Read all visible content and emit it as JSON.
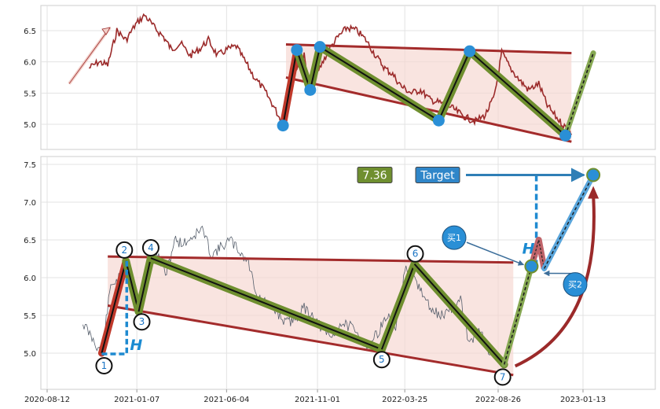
{
  "chart_data": [
    {
      "type": "line",
      "title": "",
      "ylim": [
        4.6,
        6.95
      ],
      "yticks": [
        5.0,
        5.5,
        6.0,
        6.5
      ],
      "xgrid": [
        "2020-08-12",
        "2021-01-07",
        "2021-06-04",
        "2021-11-01",
        "2022-03-25",
        "2022-08-26",
        "2023-01-13"
      ],
      "line_color": "#9b2a2a",
      "series": [
        {
          "x": [
            "2020-10-20",
            "2020-11-05",
            "2020-11-20",
            "2020-12-05",
            "2020-12-20",
            "2021-01-05",
            "2021-01-20",
            "2021-02-05",
            "2021-02-20",
            "2021-03-05",
            "2021-03-20",
            "2021-04-05",
            "2021-04-20",
            "2021-05-05",
            "2021-05-20",
            "2021-06-05",
            "2021-06-20",
            "2021-07-05",
            "2021-07-20",
            "2021-08-05",
            "2021-08-20",
            "2021-09-05",
            "2021-09-15",
            "2021-09-28",
            "2021-10-10",
            "2021-10-20",
            "2021-11-05",
            "2021-11-20",
            "2021-12-05",
            "2021-12-20",
            "2022-01-05",
            "2022-01-20",
            "2022-02-05",
            "2022-02-20",
            "2022-03-05",
            "2022-03-20",
            "2022-04-05",
            "2022-04-20",
            "2022-05-05",
            "2022-05-20",
            "2022-06-05",
            "2022-06-20",
            "2022-07-05",
            "2022-07-20",
            "2022-08-05",
            "2022-08-20",
            "2022-09-01",
            "2022-09-15",
            "2022-10-01",
            "2022-10-15",
            "2022-11-01",
            "2022-11-15",
            "2022-12-01",
            "2022-12-15",
            "2022-12-25"
          ],
          "values": [
            5.9,
            6.0,
            5.95,
            6.5,
            6.35,
            6.6,
            6.75,
            6.55,
            6.4,
            6.2,
            6.3,
            6.1,
            6.2,
            6.35,
            6.1,
            6.2,
            6.25,
            6.0,
            5.75,
            5.55,
            5.3,
            5.0,
            5.6,
            5.9,
            6.1,
            5.5,
            5.9,
            6.2,
            6.4,
            6.55,
            6.5,
            6.35,
            6.1,
            5.9,
            5.8,
            5.6,
            5.5,
            5.55,
            5.4,
            5.35,
            5.3,
            5.2,
            5.1,
            5.05,
            5.15,
            5.45,
            6.15,
            5.9,
            5.7,
            5.55,
            5.65,
            5.3,
            5.1,
            4.95,
            4.85
          ]
        }
      ],
      "pattern_points": [
        {
          "x": "2021-09-05",
          "y": 4.98
        },
        {
          "x": "2021-09-28",
          "y": 6.19
        },
        {
          "x": "2021-10-20",
          "y": 5.55
        },
        {
          "x": "2021-11-05",
          "y": 6.24
        },
        {
          "x": "2022-05-20",
          "y": 5.06
        },
        {
          "x": "2022-07-10",
          "y": 6.17
        },
        {
          "x": "2022-12-15",
          "y": 4.82
        }
      ],
      "upper_line": [
        {
          "x": "2021-09-10",
          "y": 6.28
        },
        {
          "x": "2022-12-25",
          "y": 6.14
        }
      ],
      "lower_line": [
        {
          "x": "2021-09-10",
          "y": 5.75
        },
        {
          "x": "2022-12-25",
          "y": 4.72
        }
      ],
      "projection": [
        {
          "x": "2022-12-15",
          "y": 4.82
        },
        {
          "x": "2023-01-30",
          "y": 6.14
        }
      ]
    },
    {
      "type": "line",
      "title": "",
      "ylim": [
        4.6,
        7.6
      ],
      "yticks": [
        5.0,
        5.5,
        6.0,
        6.5,
        7.0,
        7.5
      ],
      "xticks": [
        "2020-08-12",
        "2021-01-07",
        "2021-06-04",
        "2021-11-01",
        "2022-03-25",
        "2022-08-26",
        "2023-01-13"
      ],
      "line_color": "#555e6b",
      "series": [
        {
          "x": [
            "2020-10-10",
            "2020-10-25",
            "2020-11-10",
            "2020-11-25",
            "2020-12-10",
            "2020-12-25",
            "2021-01-10",
            "2021-01-25",
            "2021-02-10",
            "2021-02-25",
            "2021-03-10",
            "2021-03-25",
            "2021-04-10",
            "2021-04-25",
            "2021-05-10",
            "2021-05-25",
            "2021-06-10",
            "2021-06-25",
            "2021-07-10",
            "2021-07-25",
            "2021-08-10",
            "2021-08-25",
            "2021-09-10",
            "2021-09-25",
            "2021-10-10",
            "2021-10-25",
            "2021-11-10",
            "2021-11-25",
            "2021-12-10",
            "2021-12-25",
            "2022-01-10",
            "2022-01-25",
            "2022-02-10",
            "2022-02-25",
            "2022-03-10",
            "2022-03-25",
            "2022-04-10",
            "2022-04-25",
            "2022-05-10",
            "2022-05-25",
            "2022-06-10",
            "2022-06-25",
            "2022-07-10",
            "2022-07-25",
            "2022-08-10",
            "2022-08-25"
          ],
          "values": [
            5.4,
            5.2,
            5.0,
            5.9,
            6.0,
            6.05,
            5.55,
            6.1,
            6.3,
            6.05,
            6.5,
            6.45,
            6.55,
            6.65,
            6.3,
            6.4,
            6.5,
            6.35,
            6.2,
            5.75,
            5.65,
            5.55,
            5.4,
            5.45,
            5.6,
            5.5,
            5.3,
            5.2,
            5.4,
            5.35,
            5.2,
            5.1,
            5.3,
            5.5,
            5.35,
            6.1,
            6.0,
            5.75,
            5.55,
            5.5,
            5.6,
            5.7,
            5.1,
            5.35,
            5.0,
            4.95
          ]
        }
      ],
      "pattern_points": [
        {
          "x": "2020-11-10",
          "y": 5.0,
          "label": "1"
        },
        {
          "x": "2020-12-20",
          "y": 6.22,
          "label": "2"
        },
        {
          "x": "2021-01-10",
          "y": 5.55,
          "label": "3"
        },
        {
          "x": "2021-01-30",
          "y": 6.26,
          "label": "4"
        },
        {
          "x": "2022-02-15",
          "y": 5.05,
          "label": "5"
        },
        {
          "x": "2022-04-10",
          "y": 6.18,
          "label": "6"
        },
        {
          "x": "2022-09-05",
          "y": 4.85,
          "label": "7"
        }
      ],
      "upper_line": [
        {
          "x": "2020-11-20",
          "y": 6.28
        },
        {
          "x": "2022-09-20",
          "y": 6.2
        }
      ],
      "lower_line": [
        {
          "x": "2020-11-20",
          "y": 5.63
        },
        {
          "x": "2022-09-20",
          "y": 4.71
        }
      ],
      "target_value": "7.36",
      "target_label": "Target",
      "h_label": "H",
      "buy1_label": "买1",
      "buy2_label": "买2",
      "buy1_point": {
        "x": "2022-10-20",
        "y": 6.15
      },
      "buy2_dip": {
        "x": "2022-11-10",
        "y": 6.12
      },
      "target_point": {
        "x": "2023-01-30",
        "y": 7.36
      },
      "projection": [
        {
          "x": "2022-09-05",
          "y": 4.85
        },
        {
          "x": "2022-10-20",
          "y": 6.15
        }
      ]
    }
  ]
}
